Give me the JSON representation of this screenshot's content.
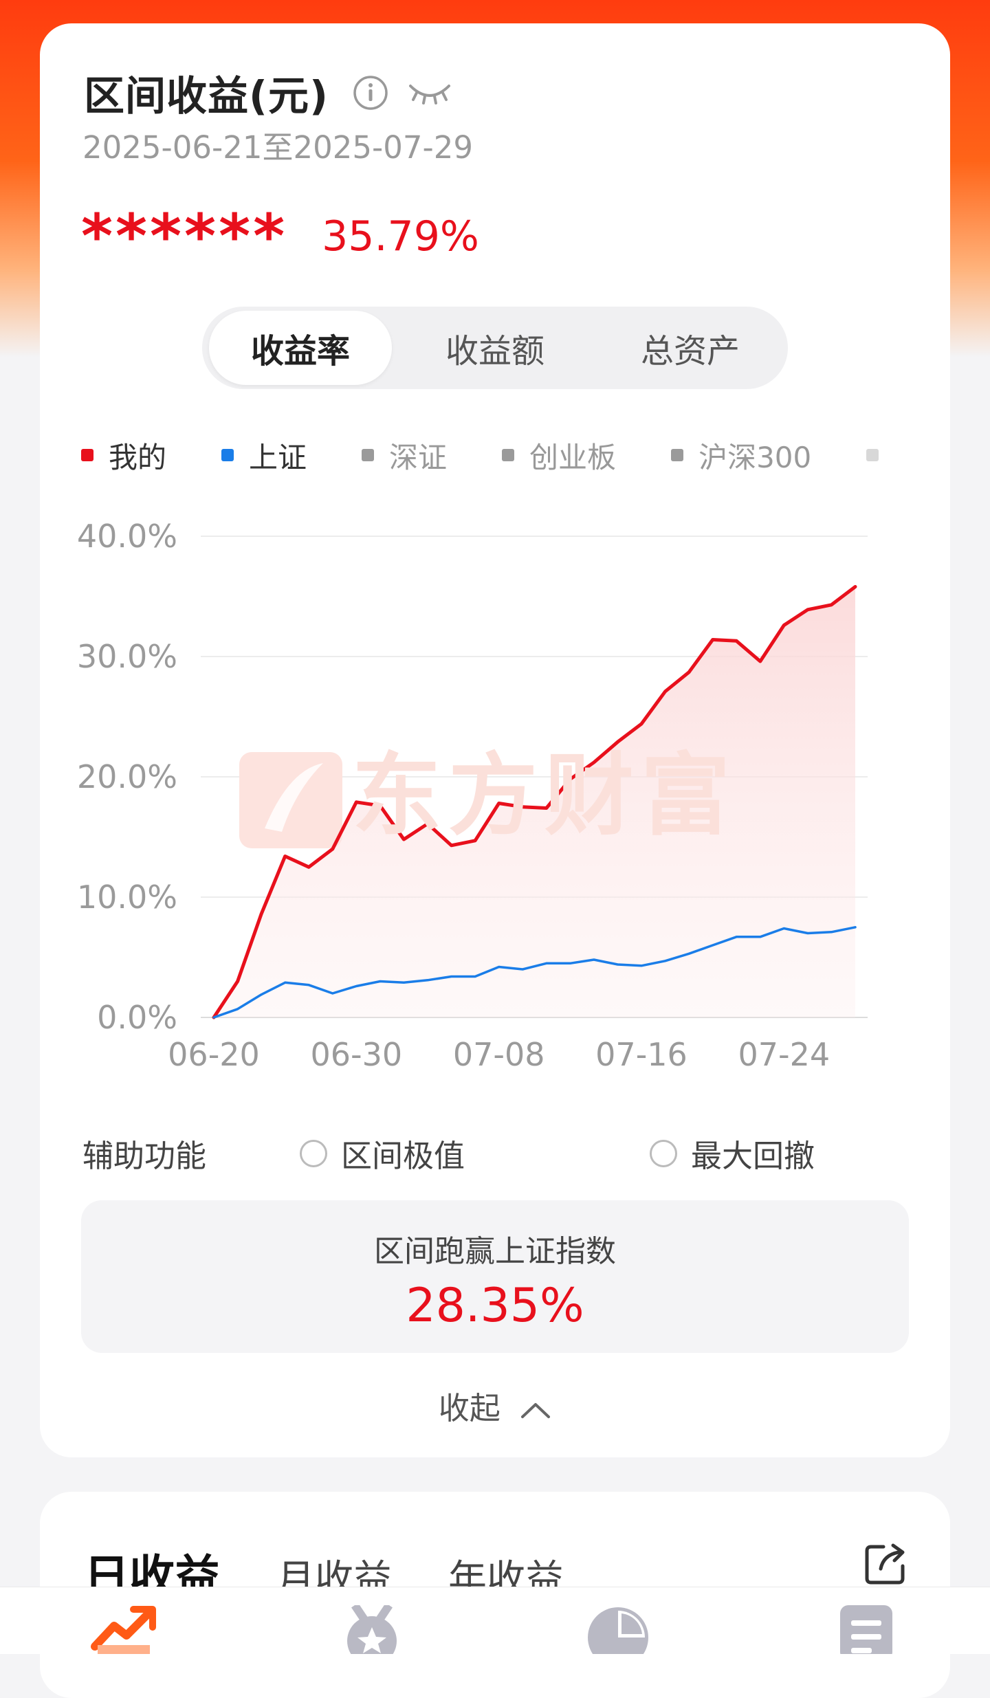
{
  "header": {
    "title": "区间收益(元)",
    "date_range": "2025-06-21至2025-07-29",
    "masked_amount": "******",
    "return_pct": "35.79%"
  },
  "segments": [
    {
      "label": "收益率",
      "active": true
    },
    {
      "label": "收益额",
      "active": false
    },
    {
      "label": "总资产",
      "active": false
    }
  ],
  "legend": [
    {
      "label": "我的",
      "color": "#e8101c",
      "active": true
    },
    {
      "label": "上证",
      "color": "#1a7de8",
      "active": true
    },
    {
      "label": "深证",
      "color": "#9a9a9a",
      "active": false
    },
    {
      "label": "创业板",
      "color": "#9a9a9a",
      "active": false
    },
    {
      "label": "沪深300",
      "color": "#9a9a9a",
      "active": false
    }
  ],
  "chart_data": {
    "type": "line",
    "y_tick_labels": [
      "40.0%",
      "30.0%",
      "20.0%",
      "10.0%",
      "0.0%"
    ],
    "ylim": [
      0,
      40
    ],
    "x_tick_labels": [
      "06-20",
      "06-30",
      "07-08",
      "07-16",
      "07-24"
    ],
    "x_tick_index": [
      0,
      6,
      12,
      18,
      24
    ],
    "grid": true,
    "legend_position": "top",
    "watermark": "东方财富",
    "series": [
      {
        "name": "我的",
        "color": "#e8101c",
        "fill": true,
        "values": [
          0.0,
          3.0,
          8.6,
          13.4,
          12.5,
          14.0,
          17.9,
          17.6,
          14.8,
          16.1,
          14.3,
          14.7,
          17.8,
          17.5,
          17.4,
          19.8,
          21.2,
          22.9,
          24.4,
          27.1,
          28.7,
          31.4,
          31.3,
          29.6,
          32.6,
          33.9,
          34.3,
          35.8
        ]
      },
      {
        "name": "上证",
        "color": "#1a7de8",
        "fill": false,
        "values": [
          0.0,
          0.7,
          1.9,
          2.9,
          2.7,
          2.0,
          2.6,
          3.0,
          2.9,
          3.1,
          3.4,
          3.4,
          4.2,
          4.0,
          4.5,
          4.5,
          4.8,
          4.4,
          4.3,
          4.7,
          5.3,
          6.0,
          6.7,
          6.7,
          7.4,
          7.0,
          7.1,
          7.5
        ]
      }
    ]
  },
  "aux": {
    "label": "辅助功能",
    "option1": "区间极值",
    "option2": "最大回撤"
  },
  "beat": {
    "label": "区间跑赢上证指数",
    "value": "28.35%"
  },
  "collapse_label": "收起",
  "daily_tabs": [
    {
      "label": "日收益",
      "active": true
    },
    {
      "label": "月收益",
      "active": false
    },
    {
      "label": "年收益",
      "active": false
    }
  ],
  "icons": {
    "info": "info-icon",
    "eye": "eye-closed-icon",
    "collapse": "chevron-up-icon",
    "share": "share-icon",
    "tabs": [
      "trend-icon",
      "medal-icon",
      "pie-chart-icon",
      "list-icon"
    ]
  }
}
